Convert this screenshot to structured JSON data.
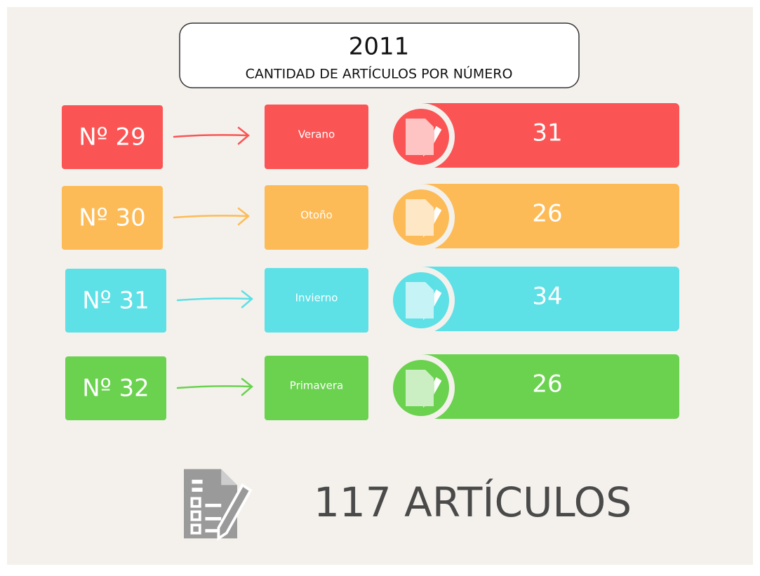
{
  "header": {
    "year": "2011",
    "subtitle": "CANTIDAD DE ARTÍCULOS POR NÚMERO"
  },
  "rows": [
    {
      "issue": "Nº 29",
      "season": "Verano",
      "count": 31
    },
    {
      "issue": "Nº 30",
      "season": "Otoño",
      "count": 26
    },
    {
      "issue": "Nº 31",
      "season": "Invierno",
      "count": 34
    },
    {
      "issue": "Nº 32",
      "season": "Primavera",
      "count": 26
    }
  ],
  "total": {
    "count": 117,
    "label": "ARTÍCULOS"
  }
}
